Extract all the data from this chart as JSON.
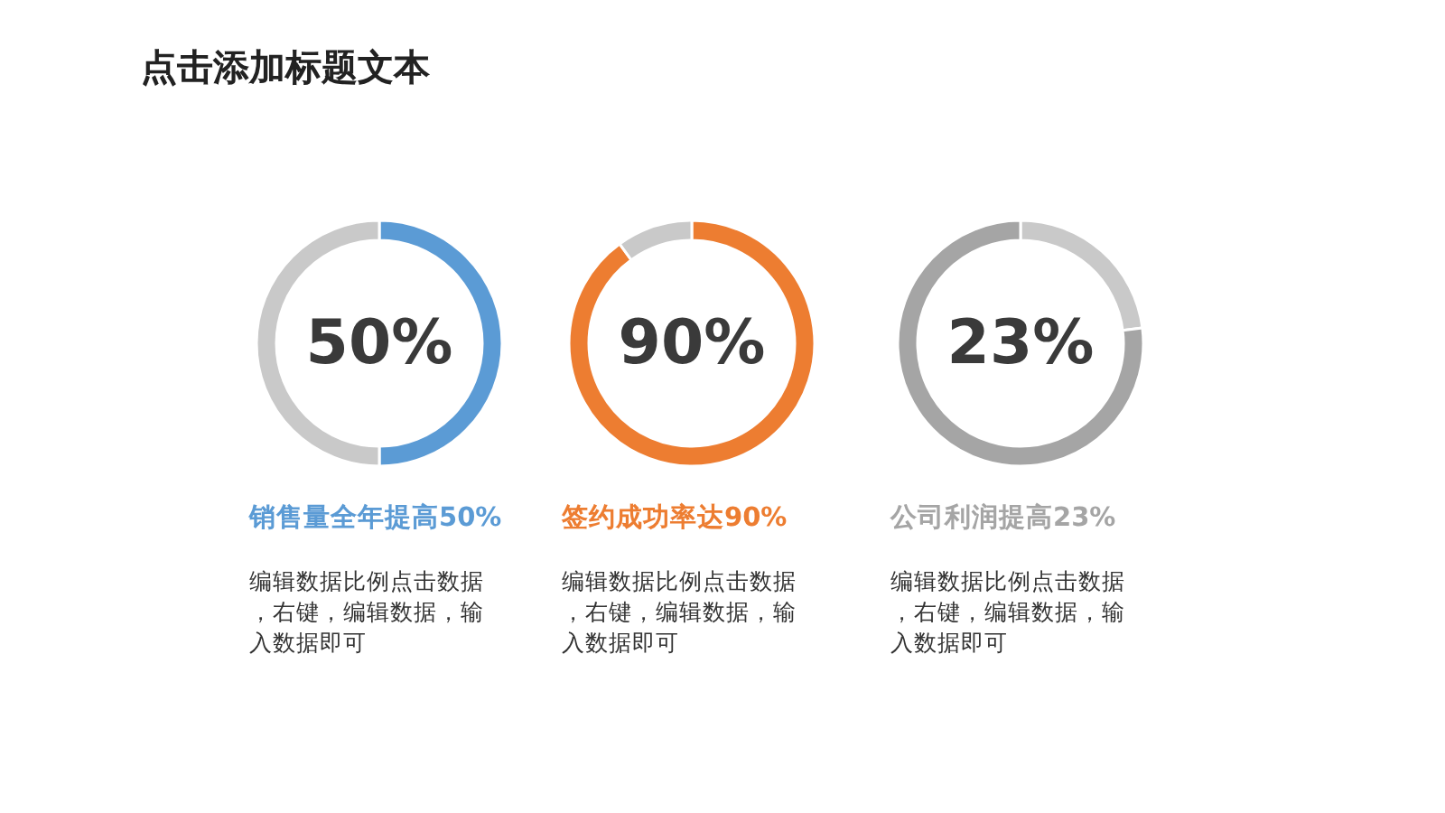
{
  "chart_data": [
    {
      "type": "donut",
      "title": "点击添加标题文本",
      "subtitle": "销售量全年提高50%",
      "categories": [
        null,
        null
      ],
      "values": [
        50,
        50
      ],
      "colors": [
        "#5b9bd5",
        "#c9c9c9"
      ],
      "annotations": [
        "50%",
        "编辑数据比例点击数据，右键，编辑数据，输入数据即可"
      ]
    },
    {
      "type": "donut",
      "subtitle": "签约成功率达90%",
      "categories": [
        null,
        null
      ],
      "values": [
        90,
        10
      ],
      "colors": [
        "#ed7d31",
        "#c9c9c9"
      ],
      "annotations": [
        "90%",
        "编辑数据比例点击数据，右键，编辑数据，输入数据即可"
      ]
    },
    {
      "type": "donut",
      "subtitle": "公司利润提高23%",
      "categories": [
        null,
        null
      ],
      "values": [
        23,
        77
      ],
      "colors": [
        "#c9c9c9",
        "#a5a5a5"
      ],
      "annotations": [
        "23%",
        "编辑数据比例点击数据，右键，编辑数据，输入数据即可"
      ]
    }
  ]
}
